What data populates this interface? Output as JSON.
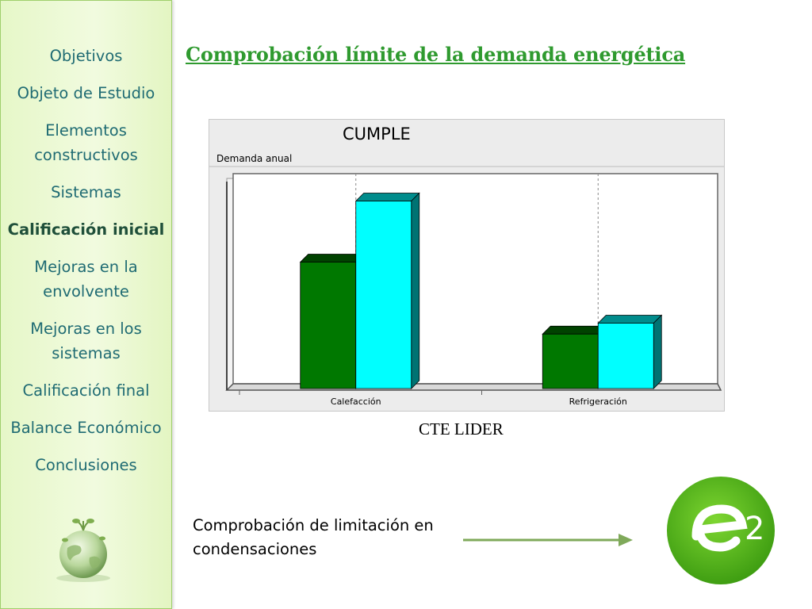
{
  "sidebar": {
    "items": [
      {
        "label": "Objetivos",
        "active": false
      },
      {
        "label": "Objeto de Estudio",
        "active": false
      },
      {
        "label": "Elementos constructivos",
        "active": false
      },
      {
        "label": "Sistemas",
        "active": false
      },
      {
        "label": "Calificación inicial",
        "active": true
      },
      {
        "label": "Mejoras en la envolvente",
        "active": false
      },
      {
        "label": "Mejoras en los sistemas",
        "active": false
      },
      {
        "label": "Calificación final",
        "active": false
      },
      {
        "label": "Balance Económico",
        "active": false
      },
      {
        "label": "Conclusiones",
        "active": false
      }
    ],
    "globe_icon": "globe-with-plants-icon"
  },
  "title": "Comprobación límite  de la demanda energética",
  "chart": {
    "status": "CUMPLE",
    "subtitle": "Demanda anual",
    "caption": "CTE LIDER"
  },
  "chart_data": {
    "type": "bar",
    "categories": [
      "Calefacción",
      "Refrigeración"
    ],
    "series": [
      {
        "values": [
          58,
          25
        ],
        "color": "#007800"
      },
      {
        "values": [
          86,
          30
        ],
        "color": "#00ffff"
      }
    ],
    "ylim": [
      0,
      100
    ],
    "grid": "vertical dashed lines at category centers",
    "legend": "none"
  },
  "footer": {
    "condensation_text": "Comprobación de limitación en condensaciones",
    "arrow_icon": "right-arrow-icon",
    "logo_icon": "e2-logo-icon",
    "logo_text": "e2"
  },
  "colors": {
    "title": "#2f9a2f",
    "nav_text": "#1f6b73",
    "sidebar_bg": "#eaf8d0",
    "logo_green": "#5cbf1f"
  }
}
